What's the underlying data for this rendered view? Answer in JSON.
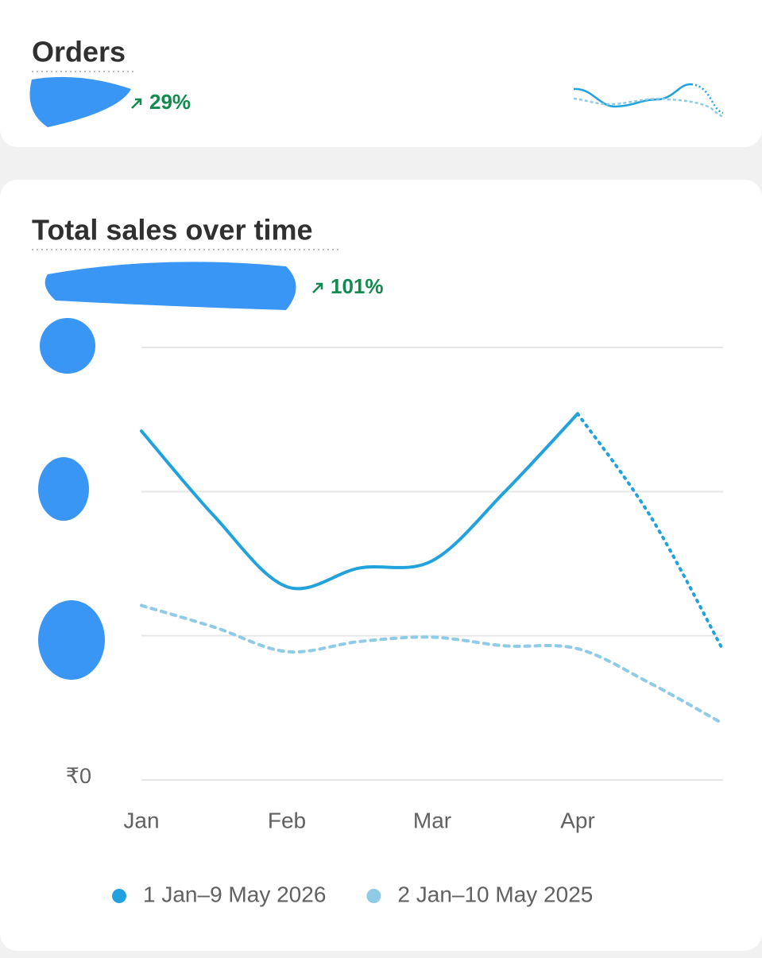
{
  "orders_card": {
    "title": "Orders",
    "change": "29%"
  },
  "sales_card": {
    "title": "Total sales over time",
    "change": "101%"
  },
  "chart_data": {
    "type": "line",
    "categories": [
      "Jan",
      null,
      "Feb",
      null,
      "Mar",
      null,
      "Apr",
      null,
      null
    ],
    "ylim": [
      0,
      3
    ],
    "yticks": [
      {
        "value": 0,
        "label": "₹0"
      },
      {
        "value": 1,
        "label": null
      },
      {
        "value": 2,
        "label": null
      },
      {
        "value": 3,
        "label": null
      }
    ],
    "grid": true,
    "series": [
      {
        "name": "1 Jan–9 May 2026",
        "color": "#22a2dc",
        "style": "solid",
        "dotted_from": 6,
        "values": [
          2.42,
          1.83,
          1.34,
          1.47,
          1.52,
          2.0,
          2.54,
          1.83,
          0.9
        ]
      },
      {
        "name": "2 Jan–10 May 2025",
        "color": "#8fcbe6",
        "style": "dashed",
        "values": [
          1.21,
          1.06,
          0.89,
          0.96,
          0.99,
          0.93,
          0.91,
          0.67,
          0.39
        ]
      }
    ]
  }
}
